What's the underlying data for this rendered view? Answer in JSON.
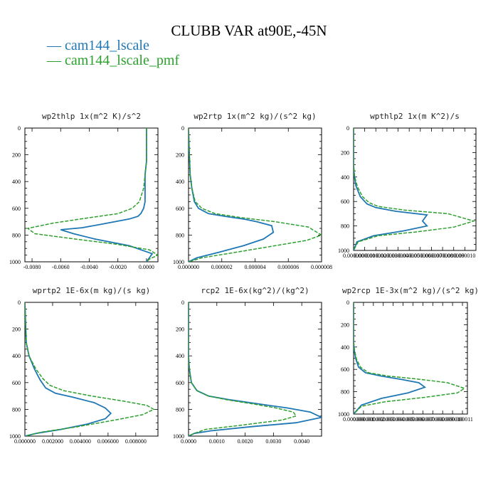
{
  "chart_data": {
    "title": "CLUBB VAR at90E,-45N",
    "legend": [
      {
        "label": "— cam144_lscale",
        "color": "#1f77b4",
        "style": "solid"
      },
      {
        "label": "— cam144_lscale_pmf",
        "color": "#2ca02c",
        "style": "dashed"
      }
    ],
    "panels": [
      {
        "type": "line",
        "title": "wp2thlp   1x(m^2 K)/s^2",
        "xlim": [
          -0.0085,
          0.0008
        ],
        "ylim": [
          1000,
          0
        ],
        "x_ticks": [
          "-0.0080",
          "-0.0060",
          "-0.0040",
          "-0.0020",
          "0.0000"
        ],
        "x_tick_values": [
          -0.008,
          -0.006,
          -0.004,
          -0.002,
          0.0
        ],
        "y_ticks": [
          0,
          200,
          400,
          600,
          800,
          1000
        ],
        "series": [
          {
            "name": "cam144_lscale",
            "x": [
              0,
              0,
              0,
              -0.0001,
              -0.0001,
              -0.0001,
              -0.0002,
              -0.0004,
              -0.0006,
              -0.0012,
              -0.0032,
              -0.0045,
              -0.006,
              -0.0051,
              -0.0036,
              -0.0012,
              0.0004,
              0.0002,
              0.0
            ],
            "y": [
              0,
              100,
              250,
              350,
              450,
              550,
              600,
              640,
              660,
              680,
              720,
              745,
              760,
              790,
              830,
              880,
              940,
              970,
              1000
            ]
          },
          {
            "name": "cam144_lscale_pmf",
            "x": [
              0,
              0,
              0,
              -0.0001,
              -0.0002,
              -0.0005,
              -0.001,
              -0.002,
              -0.004,
              -0.0065,
              -0.0083,
              -0.0078,
              -0.005,
              -0.002,
              0.0002,
              0.0008,
              0.0002,
              0.0
            ],
            "y": [
              0,
              100,
              250,
              350,
              450,
              550,
              600,
              640,
              670,
              710,
              750,
              790,
              830,
              870,
              910,
              950,
              980,
              1000
            ]
          }
        ]
      },
      {
        "type": "line",
        "title": "wp2rtp   1x(m^2 kg)/(s^2 kg)",
        "xlim": [
          0.0,
          8e-06
        ],
        "ylim": [
          1000,
          0
        ],
        "x_ticks": [
          "0.000000",
          "0.000002",
          "0.000004",
          "0.000006",
          "0.000008"
        ],
        "x_tick_values": [
          0.0,
          2e-06,
          4e-06,
          6e-06,
          8e-06
        ],
        "y_ticks": [
          0,
          200,
          400,
          600,
          800,
          1000
        ],
        "series": [
          {
            "name": "cam144_lscale",
            "x": [
              0,
              5e-08,
              1e-07,
              2e-07,
              3.5e-07,
              6e-07,
              1.2e-06,
              2.2e-06,
              3.3e-06,
              4.1e-06,
              5e-06,
              5.1e-06,
              4.5e-06,
              3.3e-06,
              1.8e-06,
              5e-07,
              0.0
            ],
            "y": [
              0,
              200,
              350,
              450,
              550,
              600,
              640,
              660,
              680,
              700,
              730,
              780,
              830,
              880,
              930,
              970,
              1000
            ]
          },
          {
            "name": "cam144_lscale_pmf",
            "x": [
              0,
              5e-08,
              1e-07,
              2e-07,
              4e-07,
              8e-07,
              1.6e-06,
              3.2e-06,
              5.2e-06,
              7.2e-06,
              8e-06,
              7.1e-06,
              5.2e-06,
              2.8e-06,
              8e-07,
              0.0
            ],
            "y": [
              0,
              200,
              350,
              450,
              550,
              600,
              640,
              670,
              700,
              740,
              800,
              840,
              880,
              930,
              970,
              1000
            ]
          }
        ]
      },
      {
        "type": "line",
        "title": "wpthlp2   1x(m K^2)/s",
        "xlim": [
          0.0,
          1.1e-05
        ],
        "ylim": [
          1000,
          0
        ],
        "x_ticks": [
          "0.000000",
          "0.000001",
          "0.000002",
          "0.000003",
          "0.000004",
          "0.000005",
          "0.000006",
          "0.000007",
          "0.000008",
          "0.000009",
          "0.000010"
        ],
        "x_tick_values": [
          0.0,
          1e-06,
          2e-06,
          3e-06,
          4e-06,
          5e-06,
          6e-06,
          7e-06,
          8e-06,
          9e-06,
          1e-05
        ],
        "y_ticks": [
          0,
          200,
          400,
          600,
          800,
          1000
        ],
        "series": [
          {
            "name": "cam144_lscale",
            "x": [
              0,
              0,
              5e-08,
              2e-07,
              6e-07,
              1.2e-06,
              2e-06,
              3.8e-06,
              6.6e-06,
              6.2e-06,
              6.6e-06,
              4.5e-06,
              1.8e-06,
              3e-07,
              0.0
            ],
            "y": [
              0,
              300,
              380,
              470,
              560,
              620,
              650,
              680,
              710,
              760,
              800,
              840,
              880,
              930,
              1000
            ]
          },
          {
            "name": "cam144_lscale_pmf",
            "x": [
              0,
              0,
              1e-07,
              3.5e-07,
              8e-07,
              1.4e-06,
              2.2e-06,
              4.5e-06,
              8.5e-06,
              1.08e-05,
              9e-06,
              5.5e-06,
              2.2e-06,
              4e-07,
              0.0
            ],
            "y": [
              0,
              300,
              400,
              480,
              560,
              610,
              640,
              670,
              700,
              760,
              810,
              850,
              880,
              930,
              1000
            ]
          }
        ]
      },
      {
        "type": "line",
        "title": "wprtp2   1E-6x(m kg)/(s kg)",
        "xlim": [
          0.0,
          0.0096
        ],
        "ylim": [
          1000,
          0
        ],
        "x_ticks": [
          "0.000000",
          "0.002000",
          "0.004000",
          "0.006000",
          "0.008000"
        ],
        "x_tick_values": [
          0.0,
          0.002,
          0.004,
          0.006,
          0.008
        ],
        "y_ticks": [
          0,
          200,
          400,
          600,
          800,
          1000
        ],
        "series": [
          {
            "name": "cam144_lscale",
            "x": [
              0,
              0.0001,
              0.0003,
              0.0007,
              0.0011,
              0.0015,
              0.0022,
              0.0035,
              0.005,
              0.0058,
              0.0062,
              0.0058,
              0.0045,
              0.0026,
              0.0008,
              0.0
            ],
            "y": [
              0,
              300,
              400,
              500,
              580,
              640,
              680,
              710,
              750,
              790,
              830,
              870,
              910,
              950,
              980,
              1000
            ]
          },
          {
            "name": "cam144_lscale_pmf",
            "x": [
              0,
              0.0001,
              0.0003,
              0.0008,
              0.0013,
              0.0018,
              0.0028,
              0.0048,
              0.0072,
              0.0088,
              0.0093,
              0.0085,
              0.0065,
              0.0038,
              0.0012,
              0.0
            ],
            "y": [
              0,
              300,
              400,
              500,
              570,
              620,
              660,
              700,
              740,
              770,
              800,
              840,
              880,
              930,
              970,
              1000
            ]
          }
        ]
      },
      {
        "type": "line",
        "title": "rcp2   1E-6x(kg^2)/(kg^2)",
        "xlim": [
          0.0,
          0.0047
        ],
        "ylim": [
          1000,
          0
        ],
        "x_ticks": [
          "0.0000",
          "0.0010",
          "0.0020",
          "0.0030",
          "0.0040"
        ],
        "x_tick_values": [
          0.0,
          0.001,
          0.002,
          0.003,
          0.004
        ],
        "y_ticks": [
          0,
          200,
          400,
          600,
          800,
          1000
        ],
        "series": [
          {
            "name": "cam144_lscale",
            "x": [
              0,
              0,
              3e-05,
              0.0001,
              0.0003,
              0.0007,
              0.0015,
              0.0025,
              0.0035,
              0.0043,
              0.0047,
              0.0038,
              0.0022,
              0.0008,
              0.0002,
              0.0
            ],
            "y": [
              0,
              400,
              500,
              600,
              660,
              700,
              730,
              760,
              790,
              820,
              860,
              900,
              930,
              960,
              980,
              1000
            ]
          },
          {
            "name": "cam144_lscale_pmf",
            "x": [
              0,
              0,
              3e-05,
              0.0001,
              0.0003,
              0.0007,
              0.0014,
              0.0023,
              0.0031,
              0.0037,
              0.0038,
              0.0033,
              0.0018,
              0.0006,
              0.0002,
              0.0
            ],
            "y": [
              0,
              400,
              500,
              600,
              660,
              700,
              730,
              760,
              790,
              820,
              850,
              880,
              920,
              950,
              980,
              1000
            ]
          }
        ]
      },
      {
        "type": "line",
        "title": "wp2rcp   1E-3x(m^2 kg)/(s^2 kg)",
        "xlim": [
          0.0,
          1.15e-05
        ],
        "ylim": [
          1000,
          0
        ],
        "x_ticks": [
          "0.000000",
          "0.000001",
          "0.000002",
          "0.000003",
          "0.000004",
          "0.000005",
          "0.000006",
          "0.000007",
          "0.000008",
          "0.000009",
          "0.000010",
          "0.000011"
        ],
        "x_tick_values": [
          0.0,
          1e-06,
          2e-06,
          3e-06,
          4e-06,
          5e-06,
          6e-06,
          7e-06,
          8e-06,
          9e-06,
          1e-05,
          1.1e-05
        ],
        "y_ticks": [
          0,
          200,
          400,
          600,
          800,
          1000
        ],
        "series": [
          {
            "name": "cam144_lscale",
            "x": [
              0,
              0,
              5e-08,
              2e-07,
              5e-07,
              1.2e-06,
              2.8e-06,
              4.8e-06,
              6.6e-06,
              7.2e-06,
              5.5e-06,
              2.8e-06,
              8e-07,
              0.0
            ],
            "y": [
              0,
              350,
              420,
              500,
              580,
              630,
              660,
              690,
              720,
              760,
              810,
              860,
              920,
              1000
            ]
          },
          {
            "name": "cam144_lscale_pmf",
            "x": [
              0,
              0,
              1e-07,
              3e-07,
              7e-07,
              1.5e-06,
              3.5e-06,
              6.8e-06,
              9.5e-06,
              1.12e-05,
              1.05e-05,
              7.2e-06,
              3.2e-06,
              8e-07,
              0.0
            ],
            "y": [
              0,
              350,
              430,
              510,
              580,
              630,
              660,
              690,
              720,
              770,
              810,
              850,
              890,
              930,
              1000
            ]
          }
        ]
      }
    ]
  }
}
